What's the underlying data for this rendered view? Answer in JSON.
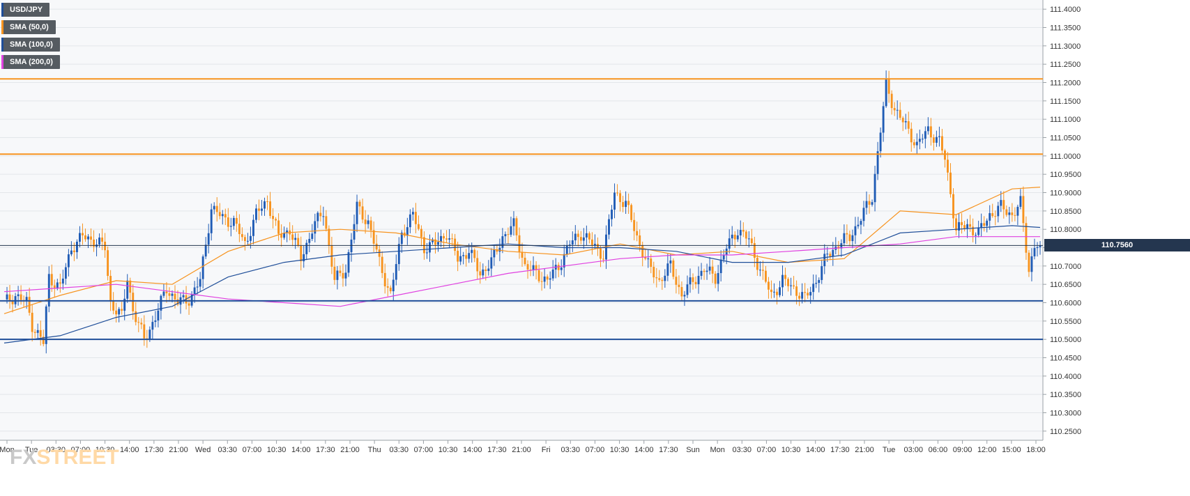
{
  "legend": [
    {
      "label": "USD/JPY",
      "color": "#1f4e99"
    },
    {
      "label": "SMA (50,0)",
      "color": "#f7931e"
    },
    {
      "label": "SMA (100,0)",
      "color": "#1f4e99"
    },
    {
      "label": "SMA (200,0)",
      "color": "#e040e0"
    }
  ],
  "current_price_label": "110.7560",
  "watermark": {
    "prefix": "FX",
    "suffix": "STREET"
  },
  "chart_data": {
    "type": "candlestick",
    "symbol": "USD/JPY",
    "ylim": [
      110.225,
      111.425
    ],
    "y_ticks": [
      "111.4000",
      "111.3500",
      "111.3000",
      "111.2500",
      "111.2000",
      "111.1500",
      "111.1000",
      "111.0500",
      "111.0000",
      "110.9500",
      "110.9000",
      "110.8500",
      "110.8000",
      "110.7500",
      "110.7000",
      "110.6500",
      "110.6000",
      "110.5500",
      "110.5000",
      "110.4500",
      "110.4000",
      "110.3500",
      "110.3000",
      "110.2500"
    ],
    "x_ticks": [
      "Mon",
      "Tue",
      "03:30",
      "07:00",
      "10:30",
      "14:00",
      "17:30",
      "21:00",
      "Wed",
      "03:30",
      "07:00",
      "10:30",
      "14:00",
      "17:30",
      "21:00",
      "Thu",
      "03:30",
      "07:00",
      "10:30",
      "14:00",
      "17:30",
      "21:00",
      "Fri",
      "03:30",
      "07:00",
      "10:30",
      "14:00",
      "17:30",
      "Sun",
      "Mon",
      "03:30",
      "07:00",
      "10:30",
      "14:00",
      "17:30",
      "21:00",
      "Tue",
      "03:00",
      "06:00",
      "09:00",
      "12:00",
      "15:00",
      "18:00"
    ],
    "current_price": 110.756,
    "horizontal_levels": [
      {
        "value": 111.21,
        "color": "#f7931e"
      },
      {
        "value": 111.005,
        "color": "#f7931e"
      },
      {
        "value": 110.605,
        "color": "#1f4e99"
      },
      {
        "value": 110.5,
        "color": "#1f4e99"
      }
    ],
    "up_color": "#1f5bb5",
    "down_color": "#f7931e",
    "anchors": [
      [
        0,
        110.6
      ],
      [
        4,
        110.62
      ],
      [
        8,
        110.6
      ],
      [
        10,
        110.54
      ],
      [
        14,
        110.49
      ],
      [
        16,
        110.67
      ],
      [
        20,
        110.64
      ],
      [
        24,
        110.75
      ],
      [
        28,
        110.78
      ],
      [
        32,
        110.77
      ],
      [
        36,
        110.75
      ],
      [
        38,
        110.6
      ],
      [
        42,
        110.56
      ],
      [
        44,
        110.67
      ],
      [
        46,
        110.58
      ],
      [
        50,
        110.5
      ],
      [
        54,
        110.56
      ],
      [
        58,
        110.64
      ],
      [
        62,
        110.6
      ],
      [
        66,
        110.61
      ],
      [
        70,
        110.66
      ],
      [
        74,
        110.86
      ],
      [
        78,
        110.83
      ],
      [
        82,
        110.82
      ],
      [
        86,
        110.76
      ],
      [
        90,
        110.84
      ],
      [
        94,
        110.88
      ],
      [
        98,
        110.78
      ],
      [
        102,
        110.8
      ],
      [
        106,
        110.72
      ],
      [
        110,
        110.8
      ],
      [
        114,
        110.85
      ],
      [
        118,
        110.66
      ],
      [
        122,
        110.69
      ],
      [
        126,
        110.86
      ],
      [
        130,
        110.82
      ],
      [
        134,
        110.71
      ],
      [
        138,
        110.62
      ],
      [
        142,
        110.79
      ],
      [
        146,
        110.84
      ],
      [
        150,
        110.75
      ],
      [
        154,
        110.76
      ],
      [
        158,
        110.79
      ],
      [
        162,
        110.72
      ],
      [
        166,
        110.74
      ],
      [
        170,
        110.68
      ],
      [
        174,
        110.71
      ],
      [
        178,
        110.78
      ],
      [
        182,
        110.81
      ],
      [
        186,
        110.7
      ],
      [
        190,
        110.68
      ],
      [
        194,
        110.66
      ],
      [
        198,
        110.7
      ],
      [
        202,
        110.76
      ],
      [
        206,
        110.79
      ],
      [
        210,
        110.76
      ],
      [
        214,
        110.73
      ],
      [
        218,
        110.9
      ],
      [
        222,
        110.87
      ],
      [
        226,
        110.78
      ],
      [
        230,
        110.7
      ],
      [
        234,
        110.66
      ],
      [
        238,
        110.7
      ],
      [
        242,
        110.62
      ],
      [
        246,
        110.66
      ],
      [
        250,
        110.69
      ],
      [
        254,
        110.67
      ],
      [
        258,
        110.75
      ],
      [
        262,
        110.8
      ],
      [
        266,
        110.77
      ],
      [
        270,
        110.69
      ],
      [
        274,
        110.62
      ],
      [
        278,
        110.66
      ],
      [
        282,
        110.64
      ],
      [
        286,
        110.61
      ],
      [
        290,
        110.66
      ],
      [
        294,
        110.73
      ],
      [
        298,
        110.76
      ],
      [
        302,
        110.78
      ],
      [
        306,
        110.83
      ],
      [
        310,
        110.89
      ],
      [
        313,
        111.07
      ],
      [
        315,
        111.19
      ],
      [
        318,
        111.13
      ],
      [
        322,
        111.08
      ],
      [
        326,
        111.03
      ],
      [
        330,
        111.07
      ],
      [
        334,
        111.04
      ],
      [
        336,
        110.99
      ],
      [
        338,
        110.9
      ],
      [
        340,
        110.8
      ],
      [
        344,
        110.81
      ],
      [
        348,
        110.79
      ],
      [
        352,
        110.84
      ],
      [
        356,
        110.86
      ],
      [
        360,
        110.84
      ],
      [
        363,
        110.87
      ],
      [
        366,
        110.69
      ],
      [
        368,
        110.756
      ]
    ],
    "sma_series": [
      {
        "name": "SMA (50,0)",
        "color": "#f7931e",
        "points": [
          [
            0,
            110.57
          ],
          [
            20,
            110.62
          ],
          [
            40,
            110.66
          ],
          [
            60,
            110.65
          ],
          [
            80,
            110.74
          ],
          [
            100,
            110.79
          ],
          [
            120,
            110.8
          ],
          [
            140,
            110.79
          ],
          [
            160,
            110.76
          ],
          [
            180,
            110.74
          ],
          [
            200,
            110.73
          ],
          [
            220,
            110.76
          ],
          [
            240,
            110.73
          ],
          [
            260,
            110.74
          ],
          [
            280,
            110.71
          ],
          [
            300,
            110.72
          ],
          [
            320,
            110.85
          ],
          [
            340,
            110.84
          ],
          [
            360,
            110.91
          ],
          [
            370,
            110.915
          ]
        ]
      },
      {
        "name": "SMA (100,0)",
        "color": "#1f4e99",
        "points": [
          [
            0,
            110.49
          ],
          [
            20,
            110.51
          ],
          [
            40,
            110.56
          ],
          [
            60,
            110.59
          ],
          [
            80,
            110.67
          ],
          [
            100,
            110.71
          ],
          [
            120,
            110.73
          ],
          [
            140,
            110.74
          ],
          [
            160,
            110.75
          ],
          [
            180,
            110.76
          ],
          [
            200,
            110.75
          ],
          [
            220,
            110.75
          ],
          [
            240,
            110.74
          ],
          [
            260,
            110.71
          ],
          [
            280,
            110.71
          ],
          [
            300,
            110.73
          ],
          [
            320,
            110.79
          ],
          [
            340,
            110.8
          ],
          [
            360,
            110.81
          ],
          [
            370,
            110.805
          ]
        ]
      },
      {
        "name": "SMA (200,0)",
        "color": "#e040e0",
        "points": [
          [
            0,
            110.63
          ],
          [
            20,
            110.64
          ],
          [
            40,
            110.65
          ],
          [
            60,
            110.63
          ],
          [
            80,
            110.61
          ],
          [
            100,
            110.6
          ],
          [
            120,
            110.59
          ],
          [
            140,
            110.62
          ],
          [
            160,
            110.65
          ],
          [
            180,
            110.68
          ],
          [
            200,
            110.7
          ],
          [
            220,
            110.72
          ],
          [
            240,
            110.73
          ],
          [
            260,
            110.73
          ],
          [
            280,
            110.74
          ],
          [
            300,
            110.75
          ],
          [
            320,
            110.76
          ],
          [
            340,
            110.78
          ],
          [
            360,
            110.78
          ],
          [
            370,
            110.78
          ]
        ]
      }
    ]
  }
}
